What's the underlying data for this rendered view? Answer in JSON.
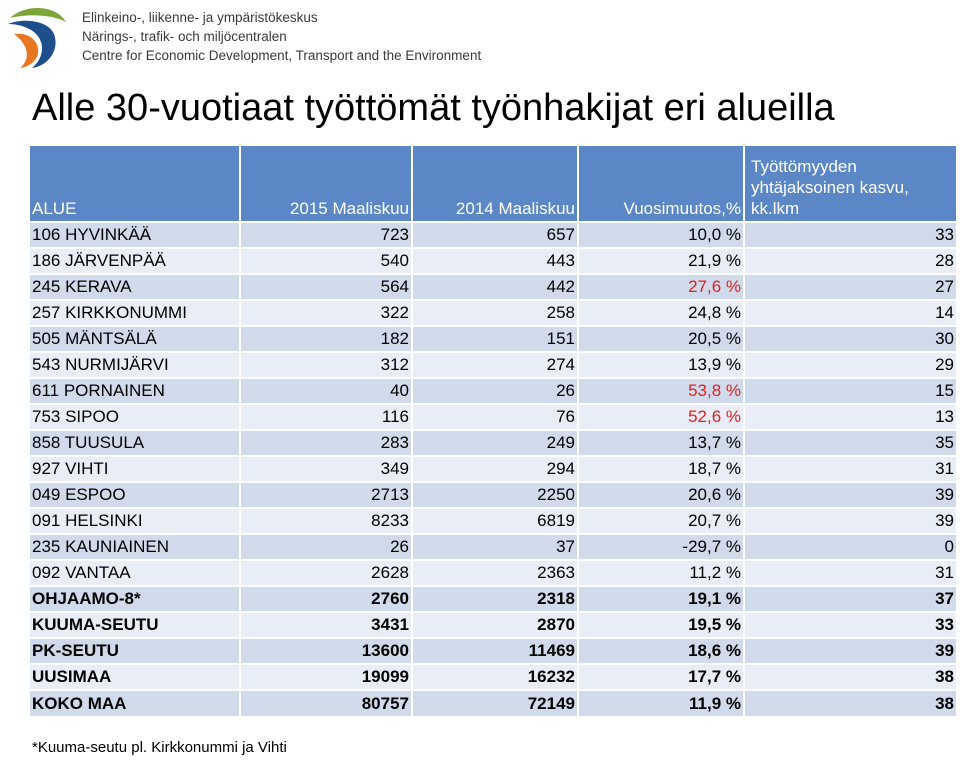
{
  "header": {
    "org_lines": [
      "Elinkeino-, liikenne- ja ympäristökeskus",
      "Närings-, trafik- och miljöcentralen",
      "Centre for Economic Development, Transport and the Environment"
    ],
    "logo_icon": "ely-centre-logo-icon"
  },
  "title": "Alle 30-vuotiaat työttömät työnhakijat eri alueilla",
  "table": {
    "headers": [
      "ALUE",
      "2015 Maaliskuu",
      "2014 Maaliskuu",
      "Vuosimuutos,%",
      "Työttömyyden yhtäjaksoinen kasvu, kk.lkm"
    ],
    "rows": [
      {
        "area": "106 HYVINKÄÄ",
        "y2015": "723",
        "y2014": "657",
        "change": "10,0 %",
        "months": "33",
        "highlight": false,
        "bold": false
      },
      {
        "area": "186 JÄRVENPÄÄ",
        "y2015": "540",
        "y2014": "443",
        "change": "21,9 %",
        "months": "28",
        "highlight": false,
        "bold": false
      },
      {
        "area": "245 KERAVA",
        "y2015": "564",
        "y2014": "442",
        "change": "27,6 %",
        "months": "27",
        "highlight": true,
        "bold": false
      },
      {
        "area": "257 KIRKKONUMMI",
        "y2015": "322",
        "y2014": "258",
        "change": "24,8 %",
        "months": "14",
        "highlight": false,
        "bold": false
      },
      {
        "area": "505 MÄNTSÄLÄ",
        "y2015": "182",
        "y2014": "151",
        "change": "20,5 %",
        "months": "30",
        "highlight": false,
        "bold": false
      },
      {
        "area": "543 NURMIJÄRVI",
        "y2015": "312",
        "y2014": "274",
        "change": "13,9 %",
        "months": "29",
        "highlight": false,
        "bold": false
      },
      {
        "area": "611 PORNAINEN",
        "y2015": "40",
        "y2014": "26",
        "change": "53,8 %",
        "months": "15",
        "highlight": true,
        "bold": false
      },
      {
        "area": "753 SIPOO",
        "y2015": "116",
        "y2014": "76",
        "change": "52,6 %",
        "months": "13",
        "highlight": true,
        "bold": false
      },
      {
        "area": "858 TUUSULA",
        "y2015": "283",
        "y2014": "249",
        "change": "13,7 %",
        "months": "35",
        "highlight": false,
        "bold": false
      },
      {
        "area": "927 VIHTI",
        "y2015": "349",
        "y2014": "294",
        "change": "18,7 %",
        "months": "31",
        "highlight": false,
        "bold": false
      },
      {
        "area": "049 ESPOO",
        "y2015": "2713",
        "y2014": "2250",
        "change": "20,6 %",
        "months": "39",
        "highlight": false,
        "bold": false
      },
      {
        "area": "091 HELSINKI",
        "y2015": "8233",
        "y2014": "6819",
        "change": "20,7 %",
        "months": "39",
        "highlight": false,
        "bold": false
      },
      {
        "area": "235 KAUNIAINEN",
        "y2015": "26",
        "y2014": "37",
        "change": "-29,7 %",
        "months": "0",
        "highlight": false,
        "bold": false
      },
      {
        "area": "092 VANTAA",
        "y2015": "2628",
        "y2014": "2363",
        "change": "11,2 %",
        "months": "31",
        "highlight": false,
        "bold": false
      },
      {
        "area": "OHJAAMO-8*",
        "y2015": "2760",
        "y2014": "2318",
        "change": "19,1 %",
        "months": "37",
        "highlight": false,
        "bold": true
      },
      {
        "area": "KUUMA-SEUTU",
        "y2015": "3431",
        "y2014": "2870",
        "change": "19,5 %",
        "months": "33",
        "highlight": false,
        "bold": true
      },
      {
        "area": "PK-SEUTU",
        "y2015": "13600",
        "y2014": "11469",
        "change": "18,6 %",
        "months": "39",
        "highlight": false,
        "bold": true
      },
      {
        "area": "UUSIMAA",
        "y2015": "19099",
        "y2014": "16232",
        "change": "17,7 %",
        "months": "38",
        "highlight": false,
        "bold": true
      },
      {
        "area": "KOKO MAA",
        "y2015": "80757",
        "y2014": "72149",
        "change": "11,9 %",
        "months": "38",
        "highlight": false,
        "bold": true
      }
    ]
  },
  "footnote": "*Kuuma-seutu pl. Kirkkonummi ja Vihti",
  "colors": {
    "header_bg": "#5b87c7",
    "row_dark": "#d0daeb",
    "row_light": "#e9eef6",
    "highlight_red": "#e02020",
    "logo_green": "#7aa63a",
    "logo_blue": "#1f4e8c",
    "logo_orange": "#e87722"
  }
}
